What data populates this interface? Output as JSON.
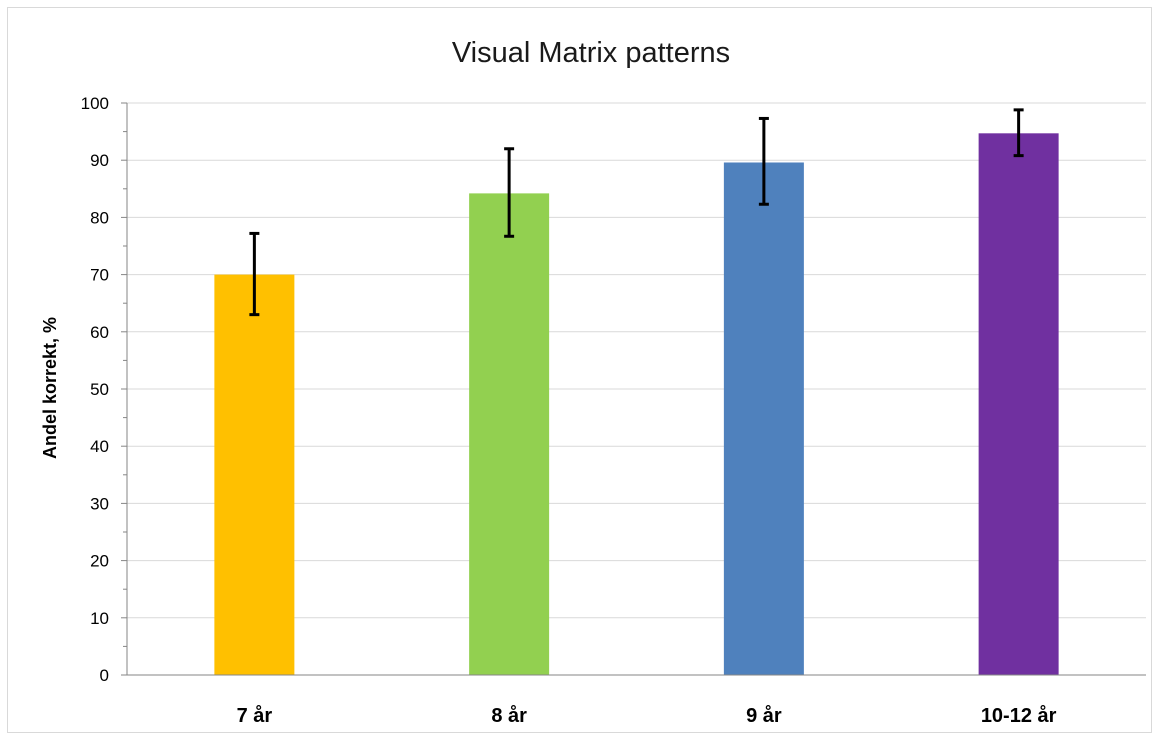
{
  "chart_data": {
    "type": "bar",
    "title": "Visual Matrix patterns",
    "xlabel": "",
    "ylabel": "Andel korrekt, %",
    "categories": [
      "7 år",
      "8 år",
      "9 år",
      "10-12 år"
    ],
    "values": [
      70,
      84.2,
      89.6,
      94.7
    ],
    "error_low": [
      63,
      76.7,
      82.3,
      90.8
    ],
    "error_high": [
      77.2,
      92,
      97.3,
      98.8
    ],
    "colors": [
      "#ffc000",
      "#92d050",
      "#4f81bd",
      "#7030a0"
    ],
    "ylim": [
      0,
      100
    ],
    "yticks": [
      0,
      10,
      20,
      30,
      40,
      50,
      60,
      70,
      80,
      90,
      100
    ],
    "grid": true,
    "legend": "none"
  }
}
